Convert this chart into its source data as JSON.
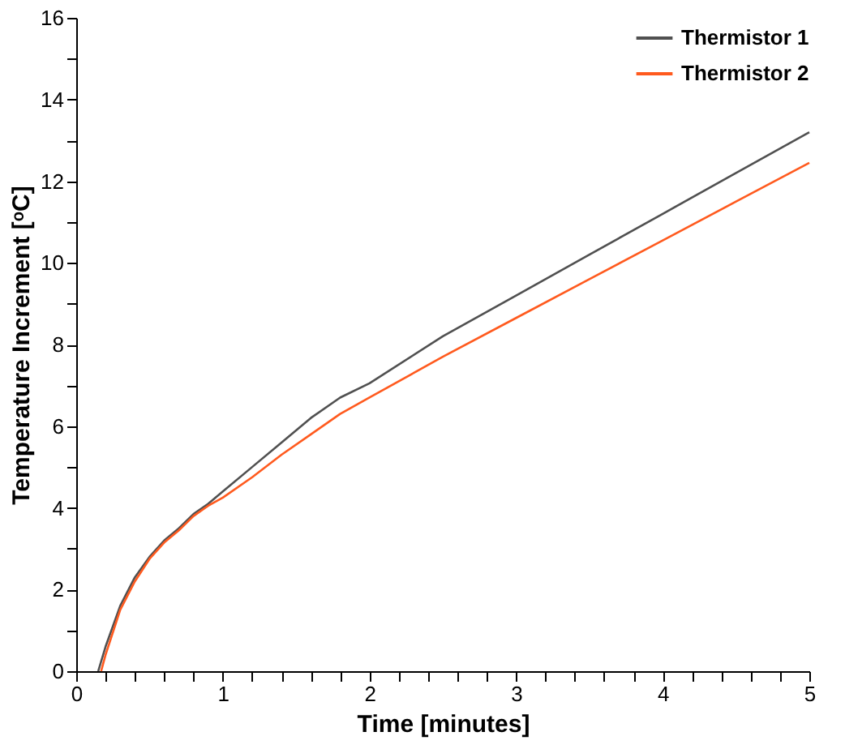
{
  "chart_data": {
    "type": "line",
    "xlabel": "Time [minutes]",
    "ylabel": "Temperature Increment [ᵒC]",
    "xlim": [
      0,
      5
    ],
    "ylim": [
      0,
      16
    ],
    "xticks": [
      0,
      {
        "value": 0.2,
        "label": null
      },
      {
        "value": 0.4,
        "label": null
      },
      {
        "value": 0.6,
        "label": null
      },
      {
        "value": 0.8,
        "label": null
      },
      1,
      {
        "value": 1.2,
        "label": null
      },
      {
        "value": 1.4,
        "label": null
      },
      {
        "value": 1.6,
        "label": null
      },
      {
        "value": 1.8,
        "label": null
      },
      2,
      {
        "value": 2.2,
        "label": null
      },
      {
        "value": 2.4,
        "label": null
      },
      {
        "value": 2.6,
        "label": null
      },
      {
        "value": 2.8,
        "label": null
      },
      3,
      {
        "value": 3.2,
        "label": null
      },
      {
        "value": 3.4,
        "label": null
      },
      {
        "value": 3.6,
        "label": null
      },
      {
        "value": 3.8,
        "label": null
      },
      4,
      {
        "value": 4.2,
        "label": null
      },
      {
        "value": 4.4,
        "label": null
      },
      {
        "value": 4.6,
        "label": null
      },
      {
        "value": 4.8,
        "label": null
      },
      5
    ],
    "yticks": [
      0,
      {
        "value": 1,
        "label": null
      },
      2,
      {
        "value": 3,
        "label": null
      },
      4,
      {
        "value": 5,
        "label": null
      },
      6,
      {
        "value": 7,
        "label": null
      },
      8,
      {
        "value": 9,
        "label": null
      },
      10,
      {
        "value": 11,
        "label": null
      },
      12,
      {
        "value": 13,
        "label": null
      },
      14,
      {
        "value": 15,
        "label": null
      },
      16
    ],
    "grid": false,
    "legend": "top right",
    "line_style": "solid",
    "marker": "none",
    "series": [
      {
        "name": "Thermistor 1",
        "color": "#505050",
        "x": [
          0.15,
          0.2,
          0.3,
          0.4,
          0.5,
          0.6,
          0.7,
          0.8,
          0.9,
          1.0,
          1.2,
          1.4,
          1.6,
          1.8,
          2.0,
          2.5,
          3.0,
          3.5,
          4.0,
          4.5,
          5.0
        ],
        "values": [
          0,
          0.6,
          1.6,
          2.3,
          2.8,
          3.2,
          3.5,
          3.85,
          4.1,
          4.4,
          5.0,
          5.6,
          6.2,
          6.7,
          7.05,
          8.2,
          9.2,
          10.2,
          11.2,
          12.2,
          13.2
        ]
      },
      {
        "name": "Thermistor 2",
        "color": "#ff5a1e",
        "x": [
          0.17,
          0.2,
          0.3,
          0.4,
          0.5,
          0.6,
          0.7,
          0.8,
          0.9,
          1.0,
          1.2,
          1.4,
          1.6,
          1.8,
          2.0,
          2.5,
          3.0,
          3.5,
          4.0,
          4.5,
          5.0
        ],
        "values": [
          0,
          0.4,
          1.5,
          2.2,
          2.75,
          3.15,
          3.45,
          3.8,
          4.05,
          4.25,
          4.75,
          5.3,
          5.8,
          6.3,
          6.7,
          7.7,
          8.65,
          9.6,
          10.55,
          11.5,
          12.45
        ]
      }
    ]
  }
}
